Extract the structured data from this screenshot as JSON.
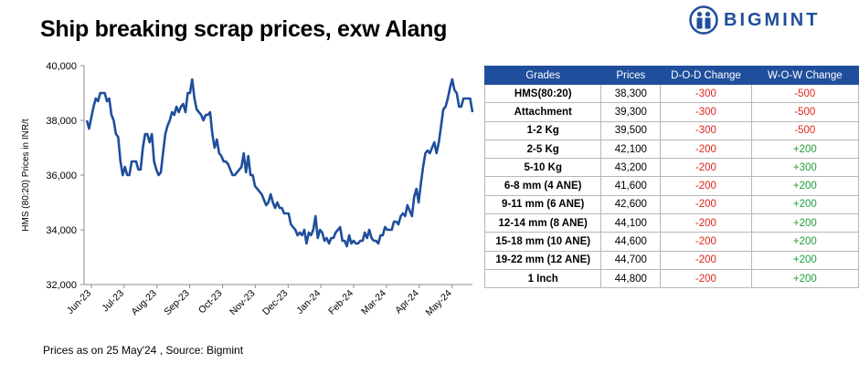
{
  "header": {
    "title": "Ship breaking scrap prices, exw Alang",
    "brand": "BIGMINT"
  },
  "colors": {
    "line": "#1f4e9c",
    "header_bg": "#1f4e9c",
    "negative": "#e0241b",
    "positive": "#1e9e3c"
  },
  "chart_data": {
    "type": "line",
    "title": "",
    "xlabel": "",
    "ylabel": "HMS (80:20) Prices in INR/t",
    "ylim": [
      32000,
      40000
    ],
    "yticks": [
      "32,000",
      "34,000",
      "36,000",
      "38,000",
      "40,000"
    ],
    "xticks": [
      "Jun-23",
      "Jul-23",
      "Aug-23",
      "Sep-23",
      "Oct-23",
      "Nov-23",
      "Dec-23",
      "Jan-24",
      "Feb-24",
      "Mar-24",
      "Apr-24",
      "May-24"
    ],
    "grid": false,
    "series": [
      {
        "values": [
          38000,
          37700,
          38100,
          38500,
          38800,
          38700,
          39000,
          39000,
          39000,
          38700,
          38800,
          38200,
          38000,
          37500,
          37400,
          36500,
          36000,
          36300,
          36000,
          36000,
          36500,
          36500,
          36500,
          36200,
          36200,
          37000,
          37500,
          37500,
          37200,
          37500,
          36500,
          36200,
          36000,
          36100,
          36800,
          37500,
          37800,
          38000,
          38300,
          38200,
          38500,
          38300,
          38500,
          38600,
          38300,
          39000,
          39000,
          39500,
          38800,
          38400,
          38300,
          38200,
          38000,
          38200,
          38200,
          38300,
          37500,
          37000,
          37300,
          36800,
          36700,
          36500,
          36500,
          36400,
          36200,
          36000,
          36000,
          36100,
          36200,
          36300,
          36800,
          36100,
          36700,
          36000,
          36000,
          35600,
          35500,
          35400,
          35300,
          35100,
          34900,
          35000,
          35300,
          35000,
          34800,
          35000,
          34800,
          34800,
          34600,
          34600,
          34600,
          34200,
          34100,
          34000,
          33800,
          33900,
          33800,
          34000,
          33500,
          33900,
          33800,
          34000,
          34500,
          33700,
          34000,
          33900,
          33600,
          33700,
          33500,
          33700,
          33700,
          33900,
          34000,
          34100,
          33600,
          33600,
          33400,
          33800,
          33500,
          33600,
          33500,
          33500,
          33600,
          33600,
          33900,
          33700,
          34000,
          33700,
          33600,
          33600,
          33500,
          33800,
          33800,
          34100,
          34000,
          34000,
          34000,
          34300,
          34300,
          34200,
          34500,
          34600,
          34500,
          34900,
          34700,
          34500,
          35200,
          35500,
          35000,
          35700,
          36300,
          36800,
          36900,
          36800,
          37000,
          37200,
          36800,
          37200,
          37800,
          38400,
          38500,
          38800,
          39200,
          39500,
          39100,
          39000,
          38500,
          38500,
          38800,
          38800,
          38800,
          38800,
          38300
        ]
      }
    ]
  },
  "table": {
    "headers": [
      "Grades",
      "Prices",
      "D-O-D Change",
      "W-O-W Change"
    ],
    "rows": [
      {
        "grade": "HMS(80:20)",
        "price": "38,300",
        "dod": "-300",
        "wow": "-500",
        "wow_sign": "neg"
      },
      {
        "grade": "Attachment",
        "price": "39,300",
        "dod": "-300",
        "wow": "-500",
        "wow_sign": "neg"
      },
      {
        "grade": "1-2 Kg",
        "price": "39,500",
        "dod": "-300",
        "wow": "-500",
        "wow_sign": "neg"
      },
      {
        "grade": "2-5 Kg",
        "price": "42,100",
        "dod": "-200",
        "wow": "+200",
        "wow_sign": "pos"
      },
      {
        "grade": "5-10 Kg",
        "price": "43,200",
        "dod": "-200",
        "wow": "+300",
        "wow_sign": "pos"
      },
      {
        "grade": "6-8 mm (4 ANE)",
        "price": "41,600",
        "dod": "-200",
        "wow": "+200",
        "wow_sign": "pos"
      },
      {
        "grade": "9-11 mm (6 ANE)",
        "price": "42,600",
        "dod": "-200",
        "wow": "+200",
        "wow_sign": "pos"
      },
      {
        "grade": "12-14 mm (8 ANE)",
        "price": "44,100",
        "dod": "-200",
        "wow": "+200",
        "wow_sign": "pos"
      },
      {
        "grade": "15-18 mm (10 ANE)",
        "price": "44,600",
        "dod": "-200",
        "wow": "+200",
        "wow_sign": "pos"
      },
      {
        "grade": "19-22 mm (12 ANE)",
        "price": "44,700",
        "dod": "-200",
        "wow": "+200",
        "wow_sign": "pos"
      },
      {
        "grade": "1 Inch",
        "price": "44,800",
        "dod": "-200",
        "wow": "+200",
        "wow_sign": "pos"
      }
    ]
  },
  "footer": {
    "note": "Prices as on 25 May'24 , Source:  Bigmint"
  }
}
